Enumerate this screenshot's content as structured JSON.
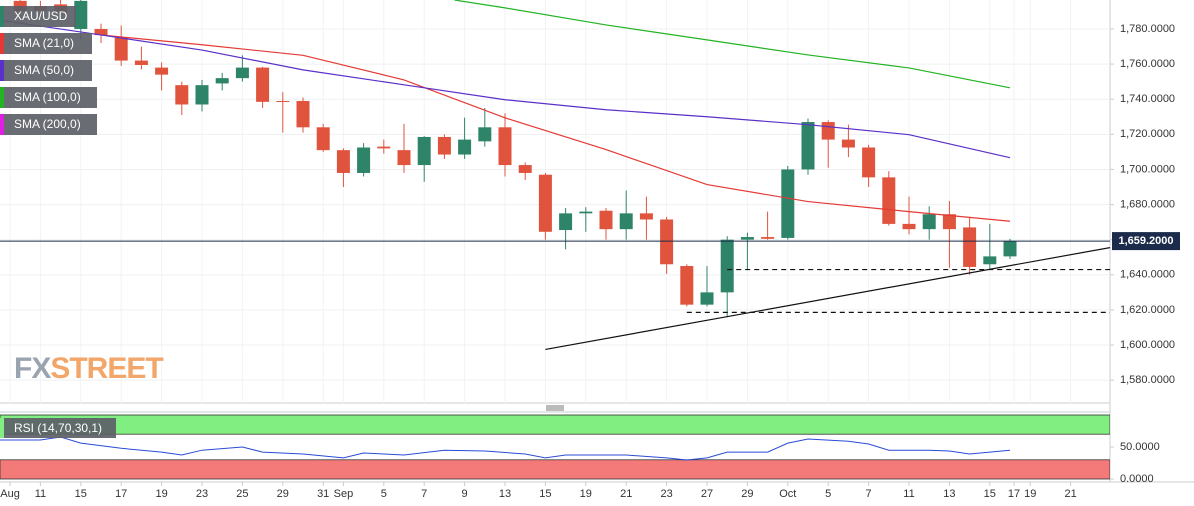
{
  "chart_data": [
    {
      "type": "candlestick",
      "name": "XAU/USD",
      "x": [
        1,
        2,
        3,
        4,
        5,
        6,
        7,
        8,
        9,
        10,
        11,
        12,
        13,
        14,
        15,
        16,
        17,
        18,
        19,
        20,
        21,
        22,
        23,
        24,
        25,
        26,
        27,
        28,
        29,
        30,
        31,
        32,
        33,
        34,
        35,
        36,
        37,
        38,
        39,
        40,
        41,
        42,
        43,
        44,
        45,
        46,
        47,
        48,
        49,
        50
      ],
      "open": [
        1796,
        1793,
        1794,
        1780,
        1780,
        1775,
        1762,
        1758,
        1748,
        1737,
        1749,
        1752,
        1758,
        1739,
        1739,
        1724,
        1711,
        1698,
        1713,
        1711,
        1702.5,
        1718.5,
        1708.5,
        1716,
        1724,
        1702.5,
        1697,
        1665.5,
        1675,
        1676.5,
        1666,
        1675,
        1671.5,
        1645,
        1623,
        1630,
        1660,
        1661.5,
        1661,
        1700,
        1727,
        1717,
        1712.5,
        1695.5,
        1669,
        1666,
        1674.5,
        1667,
        1646,
        1650.5
      ],
      "high": [
        1797,
        1796,
        1796.5,
        1796.5,
        1783,
        1782,
        1770,
        1761,
        1750,
        1751,
        1755,
        1765,
        1758.5,
        1744,
        1741,
        1726,
        1712,
        1715,
        1717,
        1726,
        1719,
        1720,
        1729.5,
        1735,
        1732,
        1704,
        1698,
        1678,
        1678.5,
        1678,
        1688,
        1684.5,
        1673,
        1646,
        1645,
        1662,
        1664,
        1676,
        1702,
        1729,
        1728,
        1725.5,
        1714,
        1699,
        1684.5,
        1679,
        1682,
        1673,
        1669,
        1660.5
      ],
      "low": [
        1786,
        1788,
        1785,
        1774,
        1772,
        1759,
        1757,
        1745,
        1731,
        1733,
        1745,
        1750,
        1735,
        1721,
        1721,
        1710,
        1690,
        1696,
        1709,
        1698,
        1693,
        1706,
        1706,
        1713,
        1696,
        1694,
        1660,
        1654.5,
        1664.5,
        1660,
        1660,
        1660,
        1640.5,
        1622,
        1622,
        1615.8,
        1643,
        1660,
        1660,
        1697,
        1701,
        1707,
        1690,
        1668,
        1663,
        1660,
        1644,
        1640,
        1643,
        1649
      ],
      "close": [
        1790,
        1790.5,
        1789,
        1796,
        1776.5,
        1762,
        1759.5,
        1754,
        1737,
        1748,
        1752,
        1758,
        1738.5,
        1738.5,
        1724,
        1711,
        1698,
        1712.5,
        1712,
        1702.5,
        1718.5,
        1708.5,
        1717,
        1724,
        1702.5,
        1698,
        1664.5,
        1675,
        1676,
        1666,
        1675,
        1671.5,
        1646,
        1623,
        1630,
        1660,
        1661.5,
        1660.5,
        1700,
        1727,
        1717,
        1712.5,
        1695.5,
        1669,
        1666,
        1674.5,
        1666,
        1644.5,
        1650.5,
        1659.2
      ],
      "up_color": "#2e8468",
      "down_color": "#e0533d",
      "xlim": [
        0,
        54.95
      ],
      "ylim": [
        1567,
        1796.5
      ],
      "yticks": [
        {
          "value": 1580,
          "label": "1,580.0000"
        },
        {
          "value": 1600,
          "label": "1,600.0000"
        },
        {
          "value": 1620,
          "label": "1,620.0000"
        },
        {
          "value": 1640,
          "label": "1,640.0000"
        },
        {
          "value": 1660,
          "label": "1,660.0000"
        },
        {
          "value": 1680,
          "label": "1,680.0000"
        },
        {
          "value": 1700,
          "label": "1,700.0000"
        },
        {
          "value": 1720,
          "label": "1,720.0000"
        },
        {
          "value": 1740,
          "label": "1,740.0000"
        },
        {
          "value": 1760,
          "label": "1,760.0000"
        },
        {
          "value": 1780,
          "label": "1,780.0000"
        }
      ],
      "grid": true,
      "overlays": [
        {
          "name": "SMA (21,0)",
          "color": "#e53935",
          "x": [
            5,
            10,
            15,
            20,
            25,
            30,
            35,
            40,
            45,
            50
          ],
          "values": [
            1776.6,
            1771,
            1765,
            1751,
            1729.4,
            1711.3,
            1691.4,
            1681.7,
            1676,
            1670.5
          ]
        },
        {
          "name": "SMA (50,0)",
          "color": "#5b2fc9",
          "x": [
            0,
            5,
            10,
            15,
            20,
            25,
            30,
            35,
            40,
            45,
            50
          ],
          "values": [
            1785,
            1776.6,
            1768,
            1756.7,
            1748.2,
            1739.7,
            1734,
            1730,
            1725.5,
            1719.8,
            1706.7
          ]
        },
        {
          "name": "SMA (100,0)",
          "color": "#22b422",
          "x": [
            22.5,
            25,
            30,
            35,
            40,
            45,
            50
          ],
          "values": [
            1796.5,
            1792,
            1782.3,
            1773.8,
            1765.2,
            1757.8,
            1746.5
          ]
        },
        {
          "name": "SMA (200,0)",
          "color": "#e020e0",
          "x": [],
          "values": []
        }
      ],
      "last_price": {
        "value": 1659.2,
        "label": "1,659.2000",
        "color": "#1d2b4a"
      },
      "lines": [
        {
          "x": [
            27,
            54.95
          ],
          "y": [
            1597.5,
            1655.5
          ],
          "style": "solid"
        },
        {
          "x": [
            36,
            54.95
          ],
          "y": [
            1643,
            1643
          ],
          "style": "dashed"
        },
        {
          "x": [
            34,
            54.95
          ],
          "y": [
            1618.6,
            1618.6
          ],
          "style": "dashed"
        }
      ],
      "watermark": [
        "FX",
        "STREET"
      ]
    },
    {
      "type": "line",
      "name": "RSI (14,70,30,1)",
      "series": [
        {
          "color": "#2a4bd7",
          "x": [
            0,
            2,
            3,
            4,
            6,
            8,
            9,
            10,
            12,
            13,
            15,
            17,
            18,
            20,
            22,
            24,
            26,
            27,
            28,
            31,
            33,
            34,
            35,
            36,
            38,
            39,
            40,
            42,
            43,
            44,
            46,
            47,
            48,
            50
          ],
          "values": [
            61,
            61,
            65.6,
            56,
            48,
            42,
            37.5,
            45,
            50,
            42,
            39,
            33,
            40.6,
            37.5,
            45,
            43.8,
            39,
            33,
            37.5,
            37.5,
            33,
            29.7,
            33,
            42,
            42,
            56,
            62.5,
            59,
            54.7,
            45,
            45,
            43.8,
            39,
            45
          ]
        }
      ],
      "bands": [
        {
          "from": 70,
          "to": 100,
          "color": "#80ee80"
        },
        {
          "from": 0,
          "to": 30,
          "color": "#f47a7a"
        }
      ],
      "xlim": [
        0,
        54.95
      ],
      "ylim": [
        -4.7,
        104.7
      ],
      "yticks": [
        {
          "value": 0,
          "label": "0.0000"
        },
        {
          "value": 50,
          "label": "50.0000"
        }
      ],
      "xticks": [
        {
          "value": 0.5,
          "label": "Aug"
        },
        {
          "value": 2,
          "label": "11"
        },
        {
          "value": 4,
          "label": "15"
        },
        {
          "value": 6,
          "label": "17"
        },
        {
          "value": 8,
          "label": "19"
        },
        {
          "value": 10,
          "label": "23"
        },
        {
          "value": 12,
          "label": "25"
        },
        {
          "value": 14,
          "label": "29"
        },
        {
          "value": 16,
          "label": "31"
        },
        {
          "value": 17,
          "label": "Sep"
        },
        {
          "value": 19,
          "label": "5"
        },
        {
          "value": 21,
          "label": "7"
        },
        {
          "value": 23,
          "label": "9"
        },
        {
          "value": 25,
          "label": "13"
        },
        {
          "value": 27,
          "label": "15"
        },
        {
          "value": 29,
          "label": "19"
        },
        {
          "value": 31,
          "label": "21"
        },
        {
          "value": 33,
          "label": "23"
        },
        {
          "value": 35,
          "label": "27"
        },
        {
          "value": 37,
          "label": "29"
        },
        {
          "value": 39,
          "label": "Oct"
        },
        {
          "value": 41,
          "label": "5"
        },
        {
          "value": 43,
          "label": "7"
        },
        {
          "value": 45,
          "label": "11"
        },
        {
          "value": 47,
          "label": "13"
        },
        {
          "value": 49,
          "label": "15"
        },
        {
          "value": 50.2,
          "label": "17"
        },
        {
          "value": 51,
          "label": "19"
        },
        {
          "value": 53,
          "label": "21"
        }
      ]
    }
  ]
}
